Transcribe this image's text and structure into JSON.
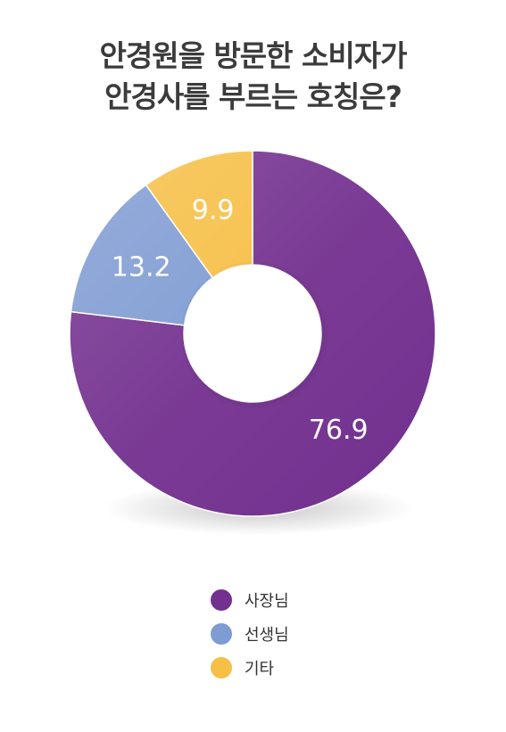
{
  "chart_data": {
    "type": "pie",
    "title": [
      "안경원을 방문한 소비자가",
      "안경사를 부르는 호칭은?"
    ],
    "categories": [
      "사장님",
      "선생님",
      "기타"
    ],
    "values": [
      76.9,
      13.2,
      9.9
    ],
    "value_labels": [
      "76.9",
      "13.2",
      "9.9"
    ],
    "colors": [
      "#73308F",
      "#7E9BD2",
      "#F6BF45"
    ],
    "legend": "bottom"
  }
}
